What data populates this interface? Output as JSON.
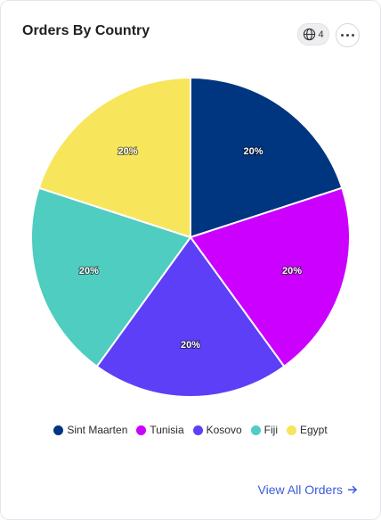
{
  "header": {
    "title": "Orders By Country",
    "badge_count": "4",
    "badge_icon": "globe-icon",
    "more_icon": "more-horizontal-icon"
  },
  "chart_data": {
    "type": "pie",
    "title": "Orders By Country",
    "categories": [
      "Sint Maarten",
      "Tunisia",
      "Kosovo",
      "Fiji",
      "Egypt"
    ],
    "values": [
      20,
      20,
      20,
      20,
      20
    ],
    "labels": [
      "20%",
      "20%",
      "20%",
      "20%",
      "20%"
    ],
    "colors": [
      "#003580",
      "#cc00ff",
      "#5d3ff7",
      "#4ecdc0",
      "#f7e55c"
    ],
    "legend_position": "bottom"
  },
  "footer": {
    "view_all_label": "View All Orders",
    "arrow_icon": "arrow-right-icon"
  }
}
